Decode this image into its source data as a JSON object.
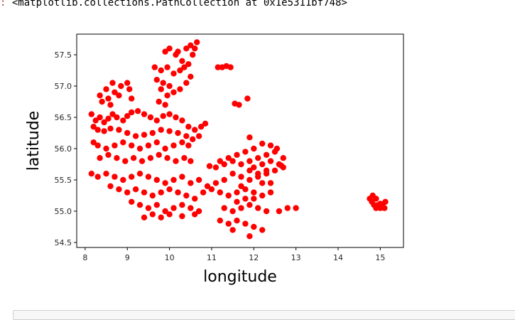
{
  "output": {
    "prompt": ":",
    "text": "<matplotlib.collections.PathCollection at 0x1e5311bf748>"
  },
  "colors": {
    "points": "#ff0000",
    "frame": "#000000",
    "tick_text": "#262626"
  },
  "chart_data": {
    "type": "scatter",
    "title": "",
    "xlabel": "longitude",
    "ylabel": "latitude",
    "xlim": [
      7.8,
      15.55
    ],
    "ylim": [
      54.42,
      57.83
    ],
    "xticks": [
      8,
      9,
      10,
      11,
      12,
      13,
      14,
      15
    ],
    "xtick_labels": [
      "8",
      "9",
      "10",
      "11",
      "12",
      "13",
      "14",
      "15"
    ],
    "yticks": [
      54.5,
      55.0,
      55.5,
      56.0,
      56.5,
      57.0,
      57.5
    ],
    "ytick_labels": [
      "54.5",
      "55.0",
      "55.5",
      "56.0",
      "56.5",
      "57.0",
      "57.5"
    ],
    "grid": false,
    "legend": false,
    "marker_color": "#ff0000",
    "points": [
      [
        8.15,
        56.55
      ],
      [
        8.25,
        56.45
      ],
      [
        8.35,
        56.5
      ],
      [
        8.45,
        56.42
      ],
      [
        8.55,
        56.48
      ],
      [
        8.65,
        56.55
      ],
      [
        8.75,
        56.5
      ],
      [
        8.9,
        56.45
      ],
      [
        9.0,
        56.52
      ],
      [
        9.1,
        56.58
      ],
      [
        9.25,
        56.6
      ],
      [
        9.4,
        56.55
      ],
      [
        9.55,
        56.5
      ],
      [
        9.7,
        56.45
      ],
      [
        9.85,
        56.52
      ],
      [
        10.0,
        56.55
      ],
      [
        10.15,
        56.5
      ],
      [
        10.3,
        56.45
      ],
      [
        10.45,
        56.35
      ],
      [
        10.6,
        56.3
      ],
      [
        10.75,
        56.35
      ],
      [
        10.85,
        56.4
      ],
      [
        8.2,
        56.35
      ],
      [
        8.3,
        56.3
      ],
      [
        8.45,
        56.28
      ],
      [
        8.6,
        56.32
      ],
      [
        8.8,
        56.3
      ],
      [
        9.0,
        56.25
      ],
      [
        9.2,
        56.2
      ],
      [
        9.4,
        56.22
      ],
      [
        9.6,
        56.25
      ],
      [
        9.8,
        56.3
      ],
      [
        10.0,
        56.28
      ],
      [
        10.2,
        56.25
      ],
      [
        10.4,
        56.2
      ],
      [
        10.55,
        56.15
      ],
      [
        10.7,
        56.2
      ],
      [
        8.2,
        56.1
      ],
      [
        8.3,
        56.05
      ],
      [
        8.5,
        56.0
      ],
      [
        8.7,
        56.05
      ],
      [
        8.9,
        56.1
      ],
      [
        9.1,
        56.05
      ],
      [
        9.3,
        56.0
      ],
      [
        9.5,
        56.05
      ],
      [
        9.7,
        56.1
      ],
      [
        9.9,
        56.0
      ],
      [
        10.1,
        56.05
      ],
      [
        10.3,
        56.1
      ],
      [
        10.45,
        56.05
      ],
      [
        8.35,
        55.85
      ],
      [
        8.55,
        55.9
      ],
      [
        8.75,
        55.85
      ],
      [
        8.95,
        55.8
      ],
      [
        9.15,
        55.85
      ],
      [
        9.35,
        55.8
      ],
      [
        9.55,
        55.85
      ],
      [
        9.75,
        55.9
      ],
      [
        9.95,
        55.85
      ],
      [
        10.15,
        55.8
      ],
      [
        10.35,
        55.85
      ],
      [
        10.5,
        55.8
      ],
      [
        8.15,
        55.6
      ],
      [
        8.3,
        55.55
      ],
      [
        8.5,
        55.6
      ],
      [
        8.7,
        55.55
      ],
      [
        8.9,
        55.5
      ],
      [
        9.1,
        55.55
      ],
      [
        9.3,
        55.6
      ],
      [
        9.5,
        55.55
      ],
      [
        9.7,
        55.5
      ],
      [
        9.9,
        55.45
      ],
      [
        10.1,
        55.5
      ],
      [
        10.3,
        55.55
      ],
      [
        10.5,
        55.45
      ],
      [
        10.7,
        55.5
      ],
      [
        10.9,
        55.4
      ],
      [
        11.1,
        55.45
      ],
      [
        11.3,
        55.5
      ],
      [
        11.5,
        55.6
      ],
      [
        11.7,
        55.55
      ],
      [
        11.9,
        55.5
      ],
      [
        12.1,
        55.55
      ],
      [
        12.3,
        55.6
      ],
      [
        12.5,
        55.65
      ],
      [
        12.7,
        55.7
      ],
      [
        8.6,
        55.4
      ],
      [
        8.8,
        55.35
      ],
      [
        9.0,
        55.3
      ],
      [
        9.2,
        55.35
      ],
      [
        9.4,
        55.3
      ],
      [
        9.6,
        55.25
      ],
      [
        9.8,
        55.3
      ],
      [
        10.0,
        55.35
      ],
      [
        10.2,
        55.3
      ],
      [
        10.4,
        55.25
      ],
      [
        10.6,
        55.2
      ],
      [
        10.8,
        55.3
      ],
      [
        11.0,
        55.35
      ],
      [
        11.2,
        55.3
      ],
      [
        11.4,
        55.25
      ],
      [
        11.6,
        55.3
      ],
      [
        11.8,
        55.35
      ],
      [
        12.0,
        55.3
      ],
      [
        12.2,
        55.25
      ],
      [
        12.4,
        55.3
      ],
      [
        9.1,
        55.15
      ],
      [
        9.3,
        55.1
      ],
      [
        9.5,
        55.05
      ],
      [
        9.7,
        55.1
      ],
      [
        9.9,
        55.0
      ],
      [
        10.1,
        55.05
      ],
      [
        10.3,
        55.1
      ],
      [
        10.5,
        55.05
      ],
      [
        10.7,
        55.0
      ],
      [
        11.3,
        55.05
      ],
      [
        11.5,
        55.0
      ],
      [
        11.7,
        55.05
      ],
      [
        11.9,
        55.1
      ],
      [
        12.1,
        55.05
      ],
      [
        12.3,
        55.0
      ],
      [
        9.4,
        54.9
      ],
      [
        9.6,
        54.95
      ],
      [
        9.8,
        54.9
      ],
      [
        10.0,
        54.95
      ],
      [
        10.3,
        54.92
      ],
      [
        10.6,
        54.95
      ],
      [
        11.2,
        54.85
      ],
      [
        11.4,
        54.8
      ],
      [
        11.6,
        54.85
      ],
      [
        11.8,
        54.8
      ],
      [
        12.0,
        54.75
      ],
      [
        12.2,
        54.7
      ],
      [
        11.9,
        54.6
      ],
      [
        11.5,
        54.7
      ],
      [
        11.1,
        55.7
      ],
      [
        11.3,
        55.75
      ],
      [
        11.5,
        55.8
      ],
      [
        11.7,
        55.75
      ],
      [
        11.9,
        55.8
      ],
      [
        12.1,
        55.85
      ],
      [
        12.3,
        55.9
      ],
      [
        12.5,
        55.95
      ],
      [
        12.55,
        56.0
      ],
      [
        12.4,
        56.05
      ],
      [
        12.2,
        56.08
      ],
      [
        12.0,
        56.0
      ],
      [
        11.8,
        55.95
      ],
      [
        11.6,
        55.9
      ],
      [
        11.4,
        55.85
      ],
      [
        11.2,
        55.8
      ],
      [
        10.95,
        55.72
      ],
      [
        12.0,
        55.7
      ],
      [
        12.2,
        55.75
      ],
      [
        12.4,
        55.8
      ],
      [
        12.6,
        55.75
      ],
      [
        12.7,
        55.85
      ],
      [
        12.1,
        55.6
      ],
      [
        12.3,
        55.65
      ],
      [
        11.9,
        55.65
      ],
      [
        11.7,
        55.4
      ],
      [
        11.8,
        55.2
      ],
      [
        11.6,
        55.15
      ],
      [
        12.0,
        55.2
      ],
      [
        12.2,
        55.45
      ],
      [
        12.4,
        55.45
      ],
      [
        8.4,
        56.75
      ],
      [
        8.55,
        56.8
      ],
      [
        8.7,
        56.9
      ],
      [
        8.85,
        57.0
      ],
      [
        9.0,
        57.05
      ],
      [
        8.5,
        56.95
      ],
      [
        8.65,
        57.05
      ],
      [
        8.8,
        56.85
      ],
      [
        9.05,
        56.95
      ],
      [
        8.35,
        56.85
      ],
      [
        9.1,
        56.8
      ],
      [
        8.6,
        56.7
      ],
      [
        9.7,
        57.1
      ],
      [
        9.85,
        57.05
      ],
      [
        10.0,
        57.0
      ],
      [
        9.8,
        56.95
      ],
      [
        9.95,
        56.85
      ],
      [
        10.1,
        56.9
      ],
      [
        10.25,
        56.95
      ],
      [
        10.4,
        57.05
      ],
      [
        10.5,
        57.15
      ],
      [
        10.45,
        57.35
      ],
      [
        10.3,
        57.4
      ],
      [
        10.15,
        57.5
      ],
      [
        10.0,
        57.6
      ],
      [
        9.9,
        57.55
      ],
      [
        10.2,
        57.55
      ],
      [
        10.55,
        57.5
      ],
      [
        10.6,
        57.6
      ],
      [
        10.65,
        57.7
      ],
      [
        10.5,
        57.65
      ],
      [
        10.4,
        57.6
      ],
      [
        9.65,
        57.3
      ],
      [
        9.8,
        57.25
      ],
      [
        9.95,
        57.3
      ],
      [
        10.1,
        57.2
      ],
      [
        10.25,
        57.25
      ],
      [
        10.35,
        57.3
      ],
      [
        9.75,
        56.75
      ],
      [
        9.9,
        56.7
      ],
      [
        11.15,
        57.3
      ],
      [
        11.25,
        57.3
      ],
      [
        11.35,
        57.32
      ],
      [
        11.45,
        57.3
      ],
      [
        11.55,
        56.72
      ],
      [
        11.65,
        56.7
      ],
      [
        11.85,
        56.8
      ],
      [
        11.9,
        56.18
      ],
      [
        14.75,
        55.2
      ],
      [
        14.8,
        55.15
      ],
      [
        14.85,
        55.1
      ],
      [
        14.9,
        55.05
      ],
      [
        14.95,
        55.1
      ],
      [
        15.0,
        55.05
      ],
      [
        15.05,
        55.1
      ],
      [
        15.1,
        55.05
      ],
      [
        15.12,
        55.15
      ],
      [
        14.82,
        55.25
      ],
      [
        14.9,
        55.2
      ],
      [
        15.0,
        55.12
      ],
      [
        12.8,
        55.05
      ],
      [
        12.6,
        55.0
      ],
      [
        13.0,
        55.05
      ],
      [
        12.65,
        55.73
      ]
    ]
  }
}
